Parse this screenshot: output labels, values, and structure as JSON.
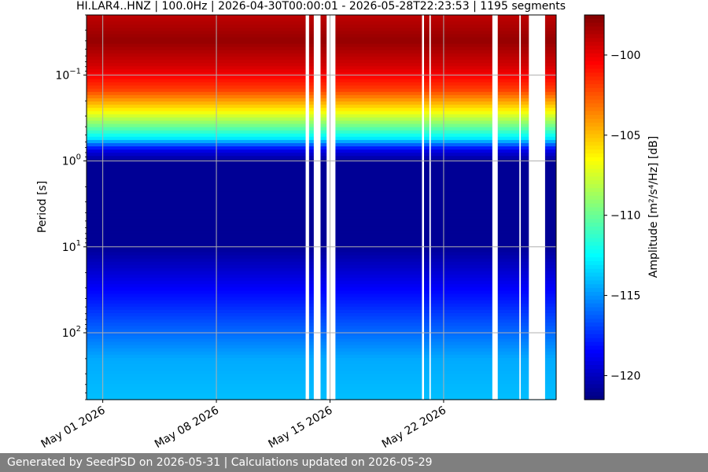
{
  "chart_data": {
    "type": "heatmap",
    "title": "HI.LAR4..HNZ | 100.0Hz | 2026-04-30T00:00:01 - 2026-05-28T22:23:53 | 1195 segments",
    "xlabel": "",
    "ylabel": "Period [s]",
    "colorbar_label": "Amplitude [m²/s⁴/Hz] [dB]",
    "colormap": "jet",
    "grid": true,
    "y_scale": "log",
    "y_inverted": true,
    "x_range": [
      "2026-04-30T00:00:01",
      "2026-05-28T22:23:53"
    ],
    "y_range": [
      0.02,
      600
    ],
    "color_range": [
      -121.5,
      -97.5
    ],
    "x_ticks": [
      {
        "date": "2026-05-01",
        "label": "May 01 2026"
      },
      {
        "date": "2026-05-08",
        "label": "May 08 2026"
      },
      {
        "date": "2026-05-15",
        "label": "May 15 2026"
      },
      {
        "date": "2026-05-22",
        "label": "May 22 2026"
      }
    ],
    "y_ticks": [
      {
        "value": 0.1,
        "base": "10",
        "exp": "−1"
      },
      {
        "value": 1,
        "base": "10",
        "exp": "0"
      },
      {
        "value": 10,
        "base": "10",
        "exp": "1"
      },
      {
        "value": 100,
        "base": "10",
        "exp": "2"
      }
    ],
    "colorbar_ticks": [
      {
        "value": -100,
        "label": "−100"
      },
      {
        "value": -105,
        "label": "−105"
      },
      {
        "value": -110,
        "label": "−110"
      },
      {
        "value": -115,
        "label": "−115"
      },
      {
        "value": -120,
        "label": "−120"
      }
    ],
    "data_gaps": [
      {
        "start": "2026-05-13T12:00:00",
        "end": "2026-05-13T17:00:00"
      },
      {
        "start": "2026-05-14T00:00:00",
        "end": "2026-05-14T10:00:00"
      },
      {
        "start": "2026-05-14T19:00:00",
        "end": "2026-05-15T08:00:00"
      },
      {
        "start": "2026-05-20T16:00:00",
        "end": "2026-05-20T19:00:00"
      },
      {
        "start": "2026-05-21T03:00:00",
        "end": "2026-05-21T05:00:00"
      },
      {
        "start": "2026-05-25T00:00:00",
        "end": "2026-05-25T08:00:00"
      },
      {
        "start": "2026-05-26T16:00:00",
        "end": "2026-05-26T18:00:00"
      },
      {
        "start": "2026-05-27T06:00:00",
        "end": "2026-05-28T06:00:00"
      }
    ],
    "psd_profile_db": [
      {
        "period": 0.02,
        "db": -99
      },
      {
        "period": 0.04,
        "db": -98
      },
      {
        "period": 0.08,
        "db": -99.5
      },
      {
        "period": 0.15,
        "db": -102
      },
      {
        "period": 0.25,
        "db": -106
      },
      {
        "period": 0.4,
        "db": -110
      },
      {
        "period": 0.55,
        "db": -113
      },
      {
        "period": 0.75,
        "db": -119
      },
      {
        "period": 1.0,
        "db": -121
      },
      {
        "period": 10,
        "db": -121
      },
      {
        "period": 40,
        "db": -118
      },
      {
        "period": 100,
        "db": -116
      },
      {
        "period": 200,
        "db": -114.5
      },
      {
        "period": 600,
        "db": -114
      }
    ]
  },
  "footer": {
    "text": "Generated by SeedPSD on 2026-05-31 | Calculations updated on 2026-05-29"
  }
}
